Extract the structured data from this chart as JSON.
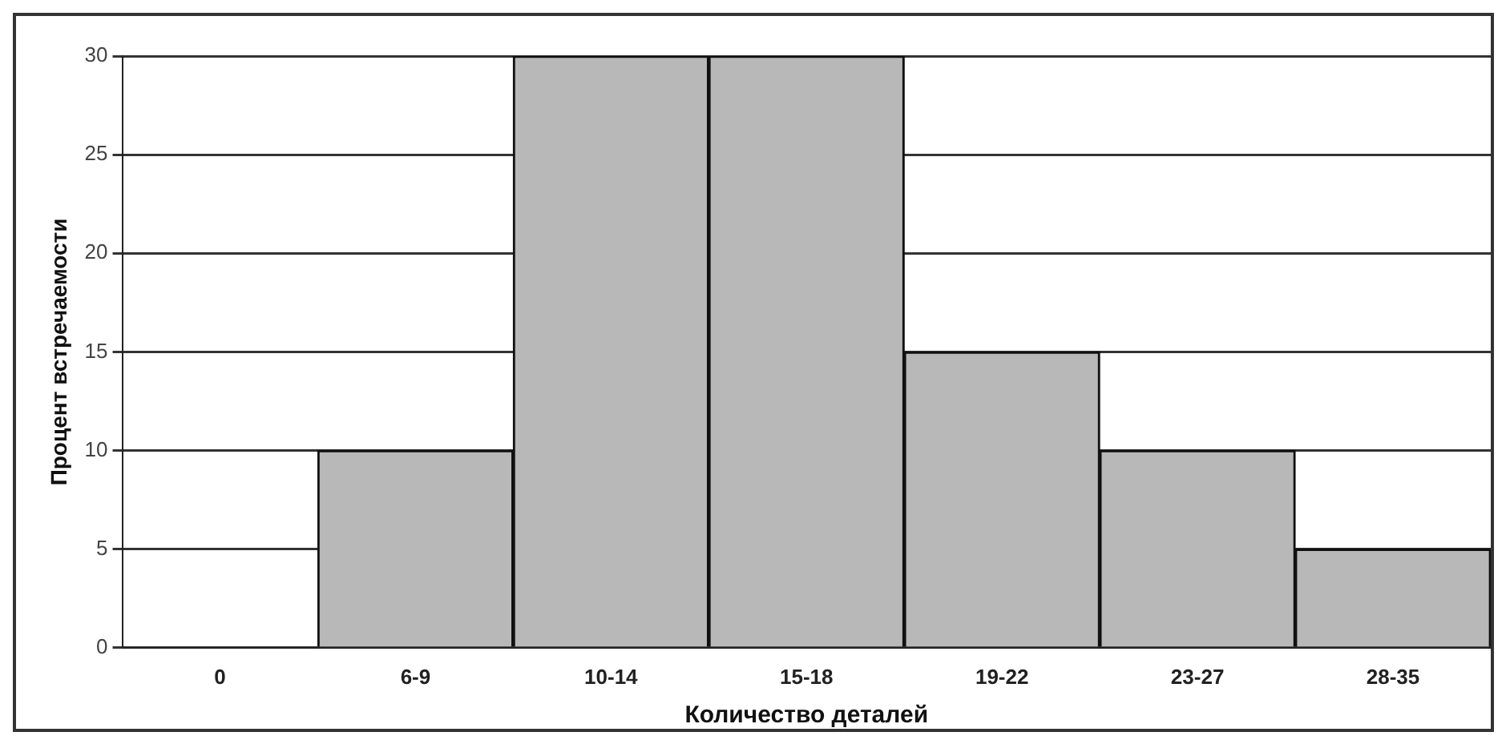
{
  "chart_data": {
    "type": "bar",
    "xlabel": "Количество деталей",
    "ylabel": "Процент встречаемости",
    "categories": [
      "0",
      "6-9",
      "10-14",
      "15-18",
      "19-22",
      "23-27",
      "28-35"
    ],
    "values": [
      0,
      10,
      30,
      30,
      15,
      10,
      5
    ],
    "color": "#b8b8b8",
    "ylim": [
      0,
      30
    ],
    "yticks": [
      0,
      5,
      10,
      15,
      20,
      25,
      30
    ],
    "grid": "y",
    "legend": false
  }
}
